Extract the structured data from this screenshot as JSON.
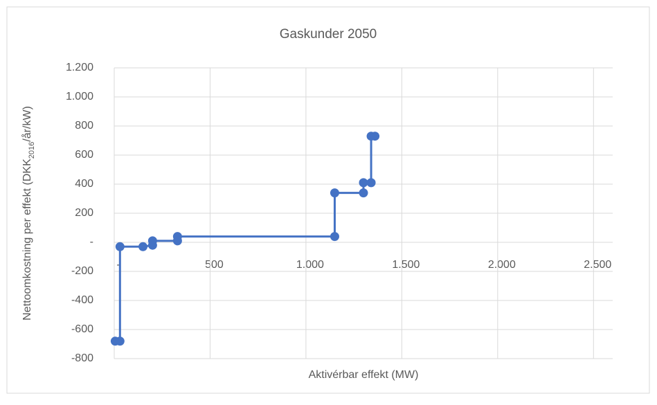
{
  "chart_data": {
    "type": "line",
    "title": "Gaskunder 2050",
    "xlabel": "Aktivérbar effekt (MW)",
    "ylabel": [
      "Nettoomkostning per effekt (DKK",
      "2016",
      "/år/kW)"
    ],
    "x": [
      5,
      30,
      30,
      150,
      200,
      200,
      330,
      330,
      1150,
      1150,
      1300,
      1300,
      1340,
      1340,
      1360
    ],
    "series": [
      {
        "color": "#4472c4",
        "values": [
          -680,
          -680,
          -30,
          -30,
          -20,
          10,
          10,
          40,
          40,
          340,
          340,
          410,
          410,
          730,
          730
        ]
      }
    ],
    "xlim": [
      0,
      2600
    ],
    "xticks": [
      {
        "value": 0,
        "label": "-"
      },
      500,
      {
        "value": 1000,
        "label": "1.000"
      },
      {
        "value": 1500,
        "label": "1.500"
      },
      {
        "value": 2000,
        "label": "2.000"
      },
      {
        "value": 2500,
        "label": "2.500"
      }
    ],
    "ylim": [
      -800,
      1200
    ],
    "yticks": [
      -800,
      -600,
      -400,
      -200,
      {
        "value": 0,
        "label": "-"
      },
      200,
      400,
      600,
      800,
      {
        "value": 1000,
        "label": "1.000"
      },
      {
        "value": 1200,
        "label": "1.200"
      }
    ],
    "grid": true
  }
}
